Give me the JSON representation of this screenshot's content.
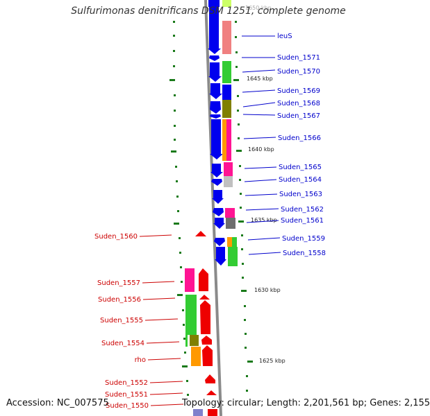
{
  "title": "Sulfurimonas denitrificans DSM 1251, complete genome",
  "accession_text": "Accession: NC_007575",
  "topology_text": "Topology: circular; Length: 2,201,561 bp; Genes: 2,155",
  "colors": {
    "plus_gene": "#0000ee",
    "minus_gene": "#ee0000",
    "plus_label": "#0000cc",
    "minus_label": "#cc0000",
    "tick": "#1a7a1a",
    "backbone": "#888888"
  },
  "scale_labels": [
    "1650 kbp",
    "1645 kbp",
    "1640 kbp",
    "1635 kbp",
    "1630 kbp",
    "1625 kbp"
  ],
  "plus_genes": [
    "leuS",
    "Suden_1571",
    "Suden_1570",
    "Suden_1569",
    "Suden_1568",
    "Suden_1567",
    "Suden_1566",
    "Suden_1565",
    "Suden_1564",
    "Suden_1563",
    "Suden_1562",
    "Suden_1561",
    "Suden_1559",
    "Suden_1558"
  ],
  "minus_genes": [
    "Suden_1560",
    "Suden_1557",
    "Suden_1556",
    "Suden_1555",
    "Suden_1554",
    "rho",
    "Suden_1552",
    "Suden_1551",
    "Suden_1550"
  ]
}
